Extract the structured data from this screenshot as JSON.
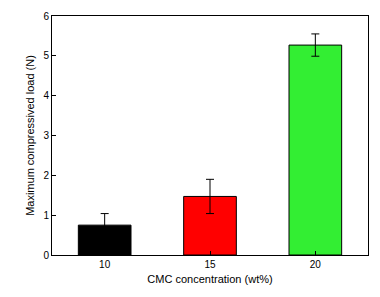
{
  "chart_data": {
    "type": "bar",
    "x_label": "CMC concentration (wt%)",
    "y_label": "Maximum compressived load (N)",
    "categories": [
      "10",
      "15",
      "20"
    ],
    "values": [
      0.75,
      1.47,
      5.27
    ],
    "error": [
      0.29,
      0.43,
      0.28
    ],
    "colors": [
      "#000000",
      "#ff0000",
      "#33ee33"
    ],
    "ylim": [
      0,
      6
    ],
    "yticks": [
      0,
      1,
      2,
      3,
      4,
      5,
      6
    ],
    "grid": false
  }
}
